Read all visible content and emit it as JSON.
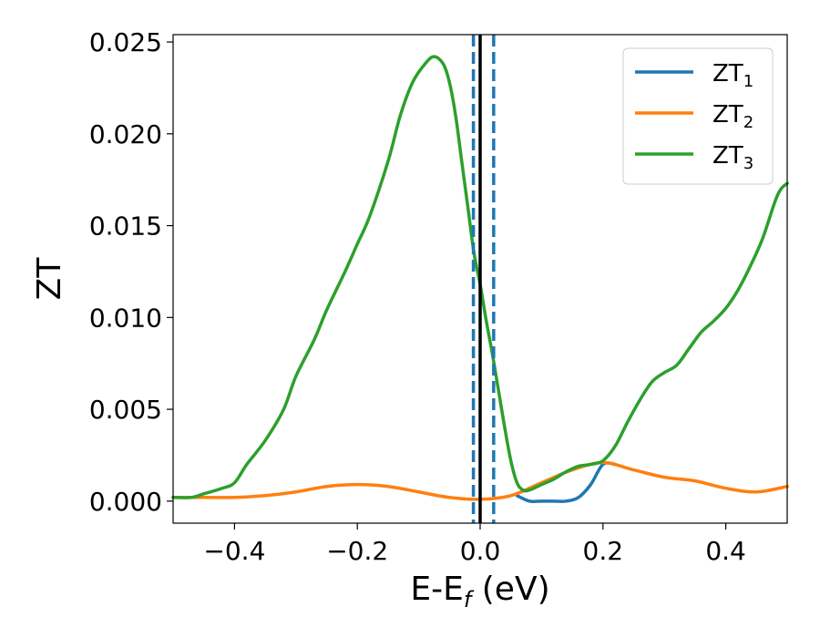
{
  "chart_data": {
    "type": "line",
    "title": "",
    "xlabel": "E-E",
    "xlabel_subscript": "f",
    "xlabel_unit": " (eV)",
    "ylabel": "ZT",
    "xlim": [
      -0.5,
      0.5
    ],
    "ylim": [
      -0.0012,
      0.0254
    ],
    "xticks": [
      -0.4,
      -0.2,
      0.0,
      0.2,
      0.4
    ],
    "xtick_labels": [
      "−0.4",
      "−0.2",
      "0.0",
      "0.2",
      "0.4"
    ],
    "yticks": [
      0.0,
      0.005,
      0.01,
      0.015,
      0.02,
      0.025
    ],
    "ytick_labels": [
      "0.000",
      "0.005",
      "0.010",
      "0.015",
      "0.020",
      "0.025"
    ],
    "grid": false,
    "legend_position": "top-right",
    "vlines": [
      {
        "x": 0.0,
        "style": "solid",
        "color": "#000000"
      },
      {
        "x": -0.011,
        "style": "dashed",
        "color": "#1f77b4"
      },
      {
        "x": 0.022,
        "style": "dashed",
        "color": "#1f77b4"
      }
    ],
    "series": [
      {
        "name": "ZT",
        "subscript": "1",
        "color": "#1f77b4",
        "x": [
          0.06,
          0.08,
          0.1,
          0.12,
          0.14,
          0.16,
          0.18,
          0.2,
          0.22
        ],
        "y": [
          0.0003,
          0.0,
          0.0,
          0.0,
          0.0,
          0.0002,
          0.0009,
          0.002,
          0.002
        ]
      },
      {
        "name": "ZT",
        "subscript": "2",
        "color": "#ff7f0e",
        "x": [
          -0.5,
          -0.45,
          -0.4,
          -0.35,
          -0.3,
          -0.25,
          -0.2,
          -0.15,
          -0.1,
          -0.05,
          0.0,
          0.05,
          0.1,
          0.15,
          0.2,
          0.25,
          0.3,
          0.35,
          0.4,
          0.45,
          0.5
        ],
        "y": [
          0.0002,
          0.0002,
          0.0002,
          0.0003,
          0.0005,
          0.0008,
          0.0009,
          0.0008,
          0.0005,
          0.0002,
          0.0001,
          0.0003,
          0.001,
          0.0017,
          0.0021,
          0.0017,
          0.0013,
          0.0011,
          0.0007,
          0.0005,
          0.0008
        ]
      },
      {
        "name": "ZT",
        "subscript": "3",
        "color": "#2ca02c",
        "x": [
          -0.5,
          -0.47,
          -0.45,
          -0.42,
          -0.4,
          -0.38,
          -0.35,
          -0.32,
          -0.3,
          -0.27,
          -0.25,
          -0.22,
          -0.2,
          -0.18,
          -0.15,
          -0.13,
          -0.11,
          -0.09,
          -0.075,
          -0.06,
          -0.05,
          -0.04,
          -0.03,
          -0.02,
          -0.01,
          0.0,
          0.01,
          0.02,
          0.03,
          0.04,
          0.05,
          0.06,
          0.07,
          0.08,
          0.1,
          0.12,
          0.14,
          0.16,
          0.18,
          0.2,
          0.22,
          0.24,
          0.26,
          0.28,
          0.3,
          0.32,
          0.34,
          0.36,
          0.38,
          0.4,
          0.42,
          0.44,
          0.46,
          0.48,
          0.49,
          0.5
        ],
        "y": [
          0.0002,
          0.0002,
          0.0004,
          0.0007,
          0.001,
          0.002,
          0.0033,
          0.005,
          0.0068,
          0.0088,
          0.0104,
          0.0125,
          0.014,
          0.0155,
          0.0185,
          0.021,
          0.0228,
          0.0238,
          0.0242,
          0.0238,
          0.0228,
          0.021,
          0.0185,
          0.016,
          0.0135,
          0.0118,
          0.0098,
          0.008,
          0.006,
          0.004,
          0.0022,
          0.001,
          0.0006,
          0.0006,
          0.0009,
          0.0012,
          0.0016,
          0.0019,
          0.002,
          0.0022,
          0.003,
          0.0043,
          0.0055,
          0.0065,
          0.007,
          0.0074,
          0.0083,
          0.0092,
          0.0098,
          0.0105,
          0.0115,
          0.0128,
          0.0143,
          0.0163,
          0.017,
          0.0173
        ]
      }
    ]
  }
}
